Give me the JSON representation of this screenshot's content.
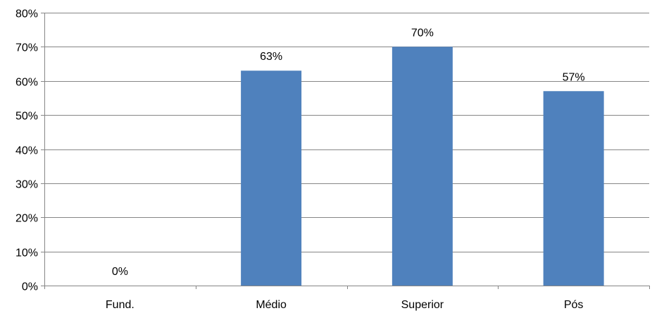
{
  "chart_data": {
    "type": "bar",
    "categories": [
      "Fund.",
      "Médio",
      "Superior",
      "Pós"
    ],
    "values": [
      0,
      63,
      70,
      57
    ],
    "data_labels": [
      "0%",
      "63%",
      "70%",
      "57%"
    ],
    "y_ticks": [
      "0%",
      "10%",
      "20%",
      "30%",
      "40%",
      "50%",
      "60%",
      "70%",
      "80%"
    ],
    "ylim": [
      0,
      80
    ],
    "grid": true,
    "legend": "none",
    "title": "",
    "xlabel": "",
    "ylabel": "",
    "colors": {
      "bar": "#4f81bd",
      "grid": "#868686",
      "axis": "#868686"
    }
  }
}
